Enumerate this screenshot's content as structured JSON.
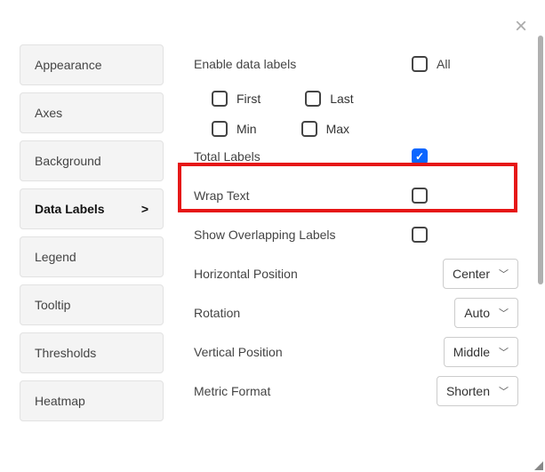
{
  "close_icon": "×",
  "sidebar": {
    "items": [
      {
        "label": "Appearance",
        "active": false
      },
      {
        "label": "Axes",
        "active": false
      },
      {
        "label": "Background",
        "active": false
      },
      {
        "label": "Data Labels",
        "active": true,
        "chevron": ">"
      },
      {
        "label": "Legend",
        "active": false
      },
      {
        "label": "Tooltip",
        "active": false
      },
      {
        "label": "Thresholds",
        "active": false
      },
      {
        "label": "Heatmap",
        "active": false
      }
    ]
  },
  "panel": {
    "enable_label": "Enable data labels",
    "all_label": "All",
    "all_checked": false,
    "sub_options": {
      "first": {
        "label": "First",
        "checked": false
      },
      "last": {
        "label": "Last",
        "checked": false
      },
      "min": {
        "label": "Min",
        "checked": false
      },
      "max": {
        "label": "Max",
        "checked": false
      }
    },
    "total_labels": {
      "label": "Total Labels",
      "checked": true
    },
    "wrap_text": {
      "label": "Wrap Text",
      "checked": false
    },
    "show_overlap": {
      "label": "Show Overlapping Labels",
      "checked": false
    },
    "horizontal_position": {
      "label": "Horizontal Position",
      "value": "Center"
    },
    "rotation": {
      "label": "Rotation",
      "value": "Auto"
    },
    "vertical_position": {
      "label": "Vertical Position",
      "value": "Middle"
    },
    "metric_format": {
      "label": "Metric Format",
      "value": "Shorten"
    },
    "checkmark": "✓",
    "caret": "﹀"
  },
  "highlight": {
    "color": "#e61717"
  }
}
